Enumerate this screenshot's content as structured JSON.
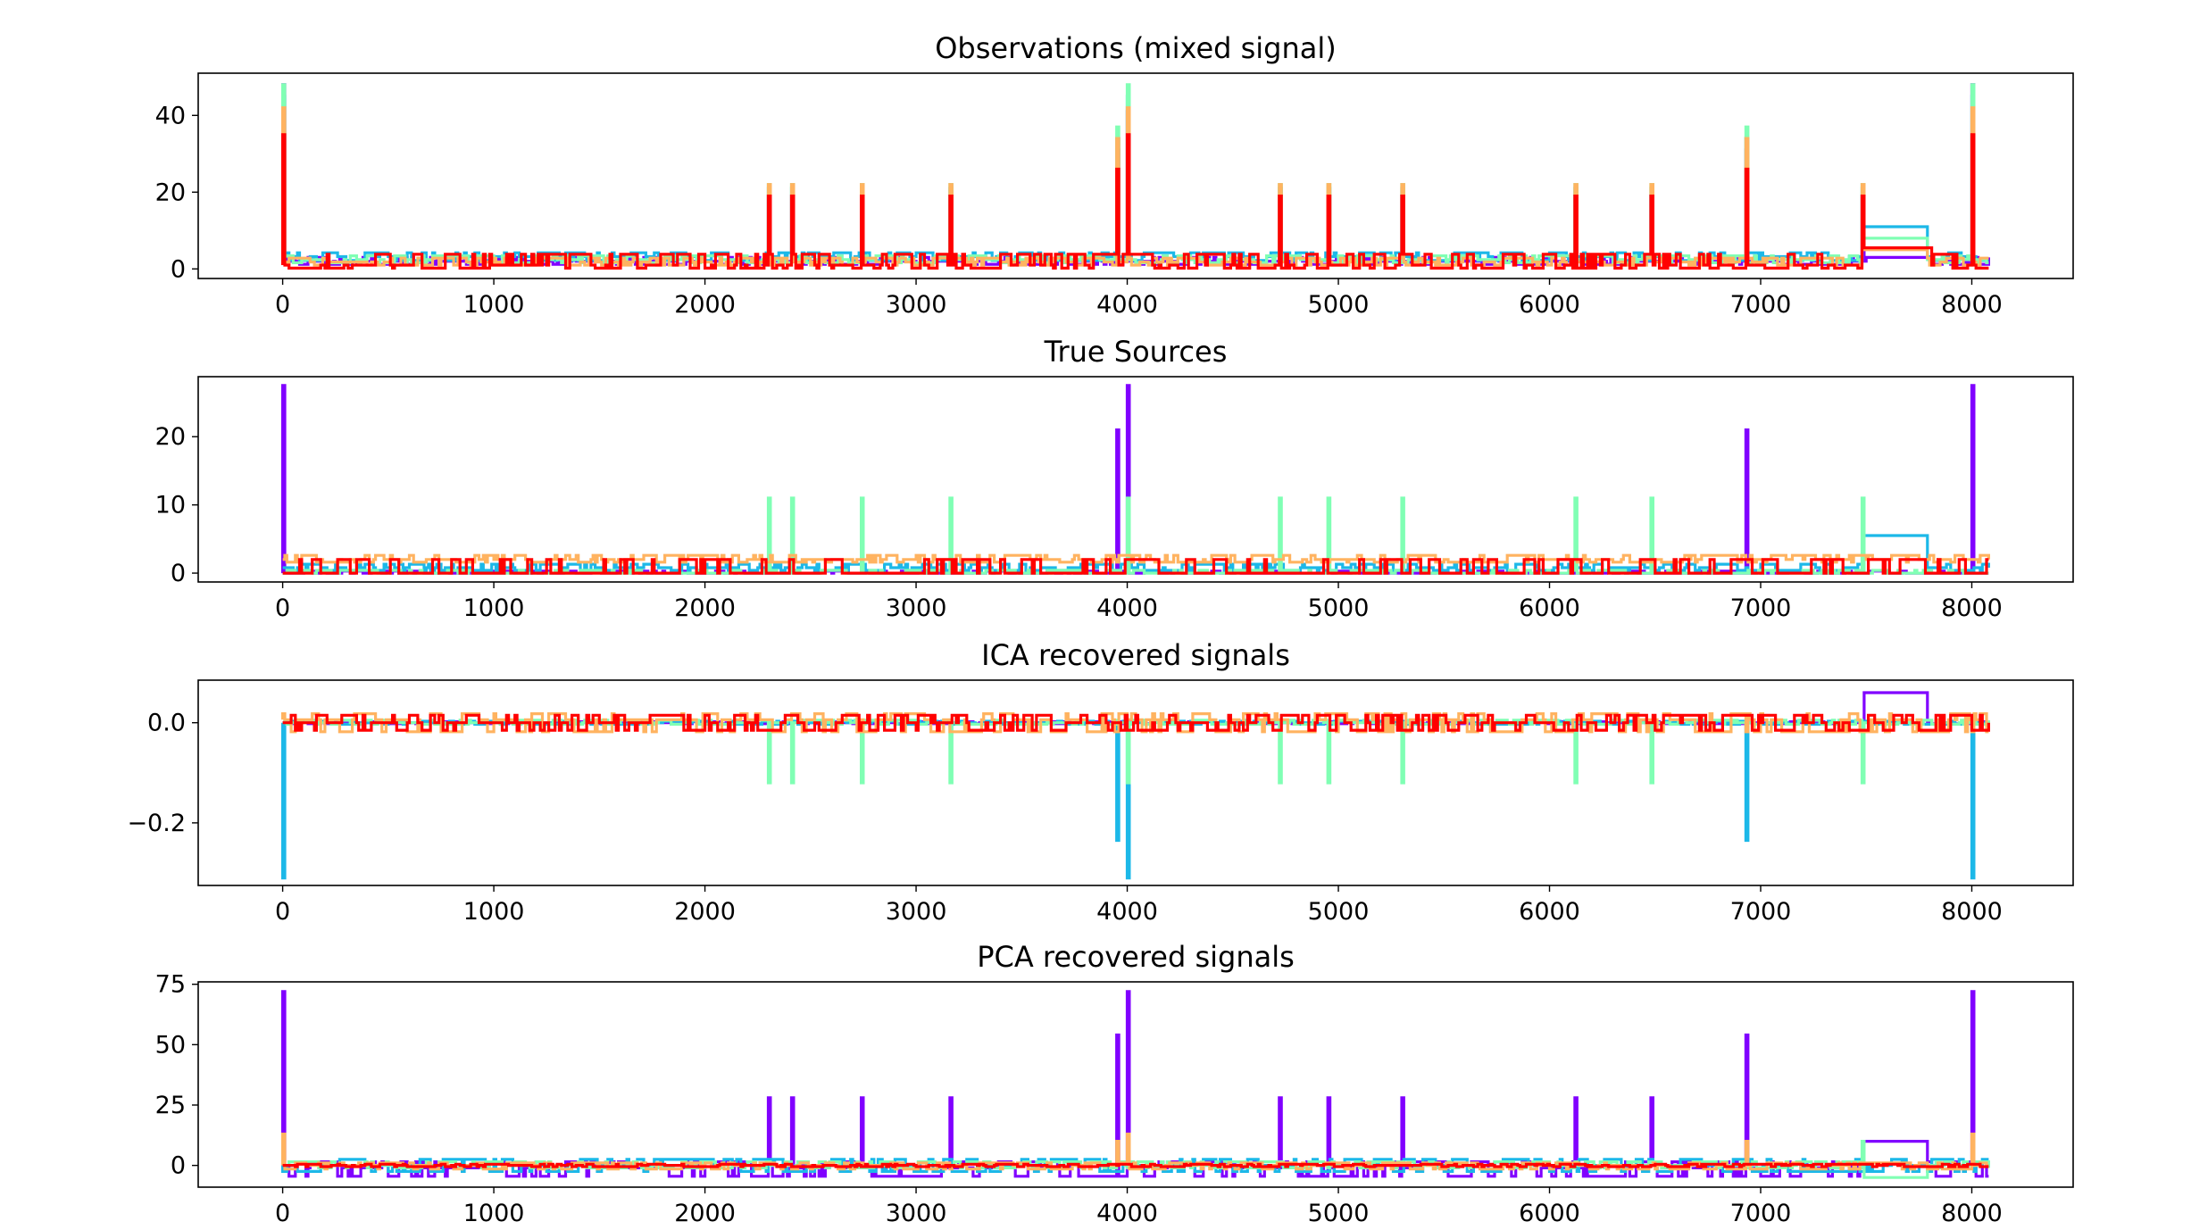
{
  "chart_data": [
    {
      "type": "line",
      "title": "Observations (mixed signal)",
      "xlim": [
        -400,
        8480
      ],
      "ylim": [
        -2.5,
        51
      ],
      "xticks": [
        "0",
        "1000",
        "2000",
        "3000",
        "4000",
        "5000",
        "6000",
        "7000",
        "8000"
      ],
      "yticks": [
        "0",
        "20",
        "40"
      ],
      "ytick_values": [
        0,
        20,
        40
      ],
      "series": [
        {
          "color": "#8000ff",
          "base": 2.0,
          "low": 1.2,
          "high": 3.0,
          "spikes": [
            [
              0,
              48
            ],
            [
              2300,
              19
            ],
            [
              2410,
              19
            ],
            [
              2740,
              19
            ],
            [
              3160,
              19
            ],
            [
              3950,
              31
            ],
            [
              4000,
              41
            ],
            [
              4720,
              19
            ],
            [
              4950,
              19
            ],
            [
              5300,
              19
            ],
            [
              6120,
              19
            ],
            [
              6480,
              19
            ],
            [
              6930,
              31
            ],
            [
              7480,
              19
            ],
            [
              8000,
              48
            ]
          ],
          "box": {
            "x": [
              7500,
              7800
            ],
            "y": 3
          }
        },
        {
          "color": "#1cb8e8",
          "base": 3.2,
          "low": 2.2,
          "high": 4.2,
          "spikes": [
            [
              0,
              45
            ],
            [
              2300,
              21
            ],
            [
              2410,
              21
            ],
            [
              2740,
              21
            ],
            [
              3160,
              21
            ],
            [
              3950,
              34
            ],
            [
              4000,
              45
            ],
            [
              4720,
              21
            ],
            [
              4950,
              21
            ],
            [
              5300,
              21
            ],
            [
              6120,
              21
            ],
            [
              6480,
              21
            ],
            [
              6930,
              34
            ],
            [
              7480,
              21
            ],
            [
              8000,
              45
            ]
          ],
          "box": {
            "x": [
              7490,
              7780
            ],
            "y": 11
          }
        },
        {
          "color": "#80ffb4",
          "base": 2.4,
          "low": 1.6,
          "high": 3.4,
          "spikes": [
            [
              0,
              48
            ],
            [
              2300,
              22
            ],
            [
              2410,
              22
            ],
            [
              2740,
              22
            ],
            [
              3160,
              22
            ],
            [
              3950,
              37
            ],
            [
              4000,
              48
            ],
            [
              4720,
              22
            ],
            [
              4950,
              22
            ],
            [
              5300,
              22
            ],
            [
              6120,
              22
            ],
            [
              6480,
              22
            ],
            [
              6930,
              37
            ],
            [
              7480,
              22
            ],
            [
              8000,
              48
            ]
          ],
          "box": {
            "x": [
              7490,
              7780
            ],
            "y": 8
          }
        },
        {
          "color": "#ffb360",
          "base": 1.8,
          "low": 1.0,
          "high": 2.8,
          "spikes": [
            [
              0,
              42
            ],
            [
              2300,
              22
            ],
            [
              2410,
              22
            ],
            [
              2740,
              22
            ],
            [
              3160,
              22
            ],
            [
              3950,
              34
            ],
            [
              4000,
              42
            ],
            [
              4720,
              22
            ],
            [
              4950,
              22
            ],
            [
              5300,
              22
            ],
            [
              6120,
              22
            ],
            [
              6480,
              22
            ],
            [
              6930,
              34
            ],
            [
              7480,
              22
            ],
            [
              8000,
              42
            ]
          ],
          "box": {
            "x": [
              7490,
              7780
            ],
            "y": 5
          }
        },
        {
          "color": "#ff0000",
          "base": 1.0,
          "low": 0.2,
          "high": 3.8,
          "spikes": [
            [
              0,
              35
            ],
            [
              2300,
              19
            ],
            [
              2410,
              19
            ],
            [
              2740,
              19
            ],
            [
              3160,
              19
            ],
            [
              3950,
              26
            ],
            [
              4000,
              35
            ],
            [
              4720,
              19
            ],
            [
              4950,
              19
            ],
            [
              5300,
              19
            ],
            [
              6120,
              19
            ],
            [
              6480,
              19
            ],
            [
              6930,
              26
            ],
            [
              7480,
              19
            ],
            [
              8000,
              35
            ]
          ],
          "box": {
            "x": [
              7480,
              7800
            ],
            "y": 5.5
          }
        }
      ]
    },
    {
      "type": "line",
      "title": "True Sources",
      "xlim": [
        -400,
        8480
      ],
      "ylim": [
        -1.3,
        28.8
      ],
      "xticks": [
        "0",
        "1000",
        "2000",
        "3000",
        "4000",
        "5000",
        "6000",
        "7000",
        "8000"
      ],
      "yticks": [
        "0",
        "10",
        "20"
      ],
      "ytick_values": [
        0,
        10,
        20
      ],
      "series": [
        {
          "color": "#8000ff",
          "base": 0.0,
          "low": 0.0,
          "high": 0.3,
          "spikes": [
            [
              0,
              27.5
            ],
            [
              3950,
              21
            ],
            [
              4000,
              27.5
            ],
            [
              6930,
              21
            ],
            [
              8000,
              27.5
            ]
          ]
        },
        {
          "color": "#1cb8e8",
          "base": 0.8,
          "low": 0.4,
          "high": 1.3,
          "spikes": [],
          "box": {
            "x": [
              7490,
              7780
            ],
            "y": 5.5
          }
        },
        {
          "color": "#80ffb4",
          "base": 0.0,
          "low": 0.0,
          "high": 0.4,
          "spikes": [
            [
              2300,
              11
            ],
            [
              2410,
              11
            ],
            [
              2740,
              11
            ],
            [
              3160,
              11
            ],
            [
              4000,
              11
            ],
            [
              4720,
              11
            ],
            [
              4950,
              11
            ],
            [
              5300,
              11
            ],
            [
              6120,
              11
            ],
            [
              6480,
              11
            ],
            [
              7480,
              11
            ]
          ]
        },
        {
          "color": "#ffb360",
          "base": 2.0,
          "low": 1.6,
          "high": 2.6,
          "spikes": []
        },
        {
          "color": "#ff0000",
          "base": 0.0,
          "low": 0.0,
          "high": 2.0,
          "spikes": []
        }
      ]
    },
    {
      "type": "line",
      "title": "ICA recovered signals",
      "xlim": [
        -400,
        8480
      ],
      "ylim": [
        -0.325,
        0.085
      ],
      "xticks": [
        "0",
        "1000",
        "2000",
        "3000",
        "4000",
        "5000",
        "6000",
        "7000",
        "8000"
      ],
      "yticks": [
        "0.0",
        "−0.2"
      ],
      "ytick_values": [
        0.0,
        -0.2
      ],
      "series": [
        {
          "color": "#8000ff",
          "base": 0.0,
          "low": -0.002,
          "high": 0.002,
          "spikes": [],
          "box": {
            "x": [
              7490,
              7780
            ],
            "y": 0.06
          }
        },
        {
          "color": "#1cb8e8",
          "base": 0.0,
          "low": -0.003,
          "high": 0.003,
          "spikes": [
            [
              0,
              -0.31
            ],
            [
              3950,
              -0.235
            ],
            [
              4000,
              -0.31
            ],
            [
              6930,
              -0.235
            ],
            [
              8000,
              -0.31
            ]
          ]
        },
        {
          "color": "#80ffb4",
          "base": 0.0,
          "low": -0.003,
          "high": 0.005,
          "spikes": [
            [
              2300,
              -0.12
            ],
            [
              2410,
              -0.12
            ],
            [
              2740,
              -0.12
            ],
            [
              3160,
              -0.12
            ],
            [
              4000,
              -0.12
            ],
            [
              4720,
              -0.12
            ],
            [
              4950,
              -0.12
            ],
            [
              5300,
              -0.12
            ],
            [
              6120,
              -0.12
            ],
            [
              6480,
              -0.12
            ],
            [
              7480,
              -0.12
            ]
          ]
        },
        {
          "color": "#ffb360",
          "base": 0.006,
          "low": -0.018,
          "high": 0.018,
          "spikes": []
        },
        {
          "color": "#ff0000",
          "base": 0.0,
          "low": -0.015,
          "high": 0.015,
          "spikes": []
        }
      ]
    },
    {
      "type": "line",
      "title": "PCA recovered signals",
      "xlim": [
        -400,
        8480
      ],
      "ylim": [
        -9,
        76
      ],
      "xticks": [
        "0",
        "1000",
        "2000",
        "3000",
        "4000",
        "5000",
        "6000",
        "7000",
        "8000"
      ],
      "yticks": [
        "0",
        "25",
        "50",
        "75"
      ],
      "ytick_values": [
        0,
        25,
        50,
        75
      ],
      "series": [
        {
          "color": "#8000ff",
          "base": -1.0,
          "low": -4.5,
          "high": 1.5,
          "spikes": [
            [
              0,
              72
            ],
            [
              2300,
              28
            ],
            [
              2410,
              28
            ],
            [
              2740,
              28
            ],
            [
              3160,
              28
            ],
            [
              3950,
              54
            ],
            [
              4000,
              72
            ],
            [
              4720,
              28
            ],
            [
              4950,
              28
            ],
            [
              5300,
              28
            ],
            [
              6120,
              28
            ],
            [
              6480,
              28
            ],
            [
              6930,
              54
            ],
            [
              8000,
              72
            ]
          ],
          "box": {
            "x": [
              7490,
              7780
            ],
            "y": 10
          }
        },
        {
          "color": "#1cb8e8",
          "base": 0.0,
          "low": -2.5,
          "high": 2.5,
          "spikes": []
        },
        {
          "color": "#80ffb4",
          "base": 0.0,
          "low": -1.0,
          "high": 1.5,
          "spikes": [
            [
              7480,
              10
            ]
          ],
          "box": {
            "x": [
              7490,
              7780
            ],
            "y": -5
          }
        },
        {
          "color": "#ffb360",
          "base": 0.0,
          "low": -1.5,
          "high": 1.0,
          "spikes": [
            [
              0,
              13
            ],
            [
              3950,
              10
            ],
            [
              4000,
              13
            ],
            [
              6930,
              10
            ],
            [
              8000,
              13
            ]
          ]
        },
        {
          "color": "#ff0000",
          "base": 0.0,
          "low": -0.5,
          "high": 0.5,
          "spikes": []
        }
      ]
    }
  ]
}
